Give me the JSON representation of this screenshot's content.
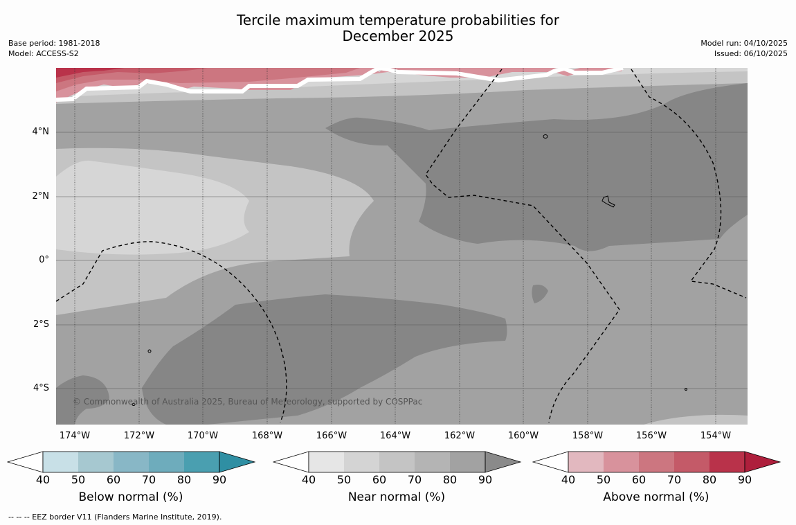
{
  "title_line1": "Tercile maximum temperature probabilities for",
  "title_line2": "December 2025",
  "base_period": "Base period: 1981-2018",
  "model": "Model: ACCESS-S2",
  "model_run": "Model run: 04/10/2025",
  "issued": "Issued: 06/10/2025",
  "copyright": "© Commonwealth of Australia 2025, Bureau of Meteorology, supported by COSPPac",
  "lat_labels": [
    "4°N",
    "2°N",
    "0°",
    "2°S",
    "4°S"
  ],
  "lon_labels": [
    "174°W",
    "172°W",
    "170°W",
    "168°W",
    "166°W",
    "164°W",
    "162°W",
    "160°W",
    "158°W",
    "156°W",
    "154°W"
  ],
  "colorbars": [
    {
      "title": "Below normal (%)",
      "ticks": [
        "40",
        "50",
        "60",
        "70",
        "80",
        "90"
      ],
      "colors": [
        "#c8e0e7",
        "#a6c8d0",
        "#88b7c6",
        "#6eacbc",
        "#4a9fb0"
      ],
      "extend": "#2f8fa3"
    },
    {
      "title": "Near normal (%)",
      "ticks": [
        "40",
        "50",
        "60",
        "70",
        "80",
        "90"
      ],
      "colors": [
        "#e6e6e6",
        "#d4d4d4",
        "#c4c4c4",
        "#b4b4b4",
        "#a2a2a2"
      ],
      "extend": "#8a8a8a"
    },
    {
      "title": "Above normal (%)",
      "ticks": [
        "40",
        "50",
        "60",
        "70",
        "80",
        "90"
      ],
      "colors": [
        "#e2b8bf",
        "#d8929c",
        "#cc7680",
        "#c45a68",
        "#b9324a"
      ],
      "extend": "#ae1f3c"
    }
  ],
  "footnote": "--  --  -- EEZ border V11 (Flanders Marine Institute, 2019)."
}
